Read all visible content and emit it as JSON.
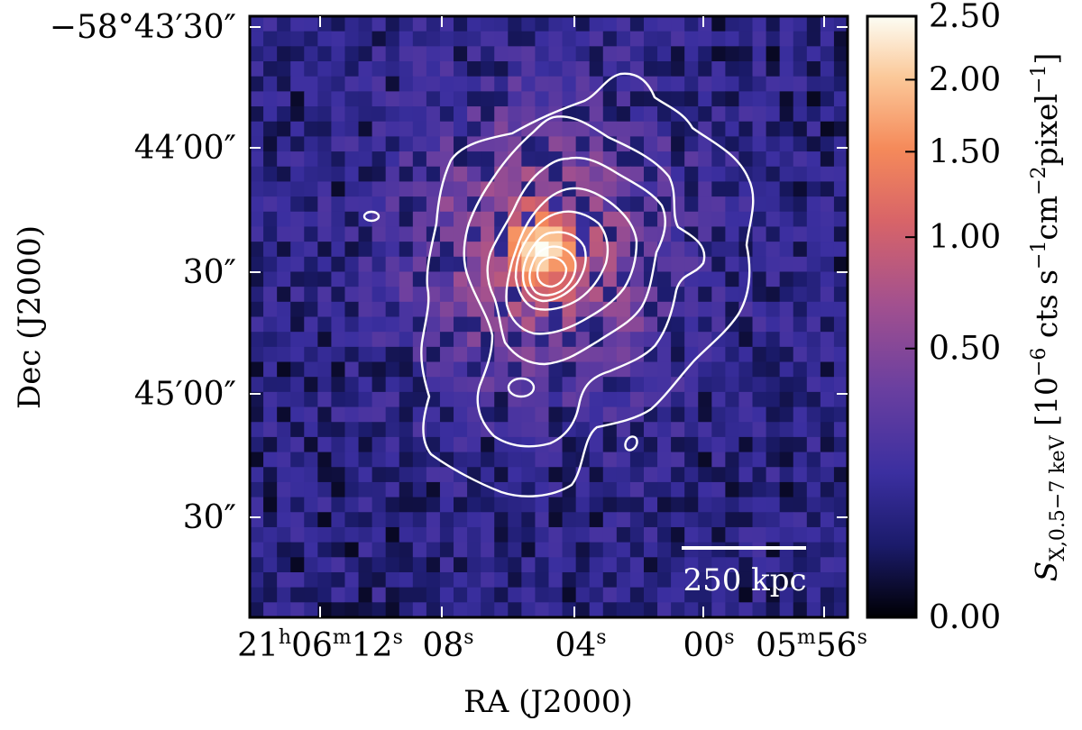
{
  "chart_data": {
    "type": "heatmap",
    "title": "",
    "xlabel": "RA (J2000)",
    "ylabel": "Dec (J2000)",
    "x_ticks": [
      {
        "label": "21h06m12s",
        "ra_seconds_offset": 12
      },
      {
        "label": "08s",
        "ra_seconds_offset": 8
      },
      {
        "label": "04s",
        "ra_seconds_offset": 4
      },
      {
        "label": "00s",
        "ra_seconds_offset": 0
      },
      {
        "label": "05m56s",
        "ra_seconds_offset": -4
      }
    ],
    "x_tick_parts": {
      "first": {
        "h": "21",
        "h_unit": "h",
        "m": "06",
        "m_unit": "m",
        "s": "12",
        "s_unit": "s"
      },
      "second": {
        "s": "08",
        "s_unit": "s"
      },
      "third": {
        "s": "04",
        "s_unit": "s"
      },
      "fourth": {
        "s": "00",
        "s_unit": "s"
      },
      "fifth": {
        "m": "05",
        "m_unit": "m",
        "s": "56",
        "s_unit": "s"
      }
    },
    "y_ticks": [
      {
        "label": "−58°43′30″",
        "dec_arcsec_offset": 0
      },
      {
        "label": "44′00″",
        "dec_arcsec_offset": -30
      },
      {
        "label": "30″",
        "dec_arcsec_offset": -60
      },
      {
        "label": "45′00″",
        "dec_arcsec_offset": -90
      },
      {
        "label": "30″",
        "dec_arcsec_offset": -120
      }
    ],
    "colorbar": {
      "label": "S_X,0.5–7 keV [10^−6 cts s^−1 cm^−2 pixel^−1]",
      "label_parts": {
        "symbol": "S",
        "subscript": "X,0.5−7 keV",
        "open": " [10",
        "exp1": "−6",
        "mid1": " cts s",
        "exp2": "−1",
        "mid2": "cm",
        "exp3": "−2",
        "mid3": "pixel",
        "exp4": "−1",
        "close": "]"
      },
      "range": [
        0.0,
        2.5
      ],
      "scale": "sqrt",
      "ticks": [
        {
          "value": 0.0,
          "label": "0.00"
        },
        {
          "value": 0.5,
          "label": "0.50"
        },
        {
          "value": 1.0,
          "label": "1.00"
        },
        {
          "value": 1.5,
          "label": "1.50"
        },
        {
          "value": 2.0,
          "label": "2.00"
        },
        {
          "value": 2.5,
          "label": "2.50"
        }
      ],
      "colormap": [
        "#000004",
        "#1b1b6b",
        "#3b2fa0",
        "#6a3fa0",
        "#a2508f",
        "#d86468",
        "#f58a5a",
        "#fbc99a",
        "#fcfdf4"
      ]
    },
    "image": {
      "grid_cols": 44,
      "grid_rows": 40,
      "peak_value": 2.5,
      "peak_col": 21,
      "peak_row": 15,
      "background_level": 0.1
    },
    "contours": {
      "count": 8,
      "color": "#ffffff"
    },
    "scale_bar": {
      "label": "250 kpc",
      "color": "#ffffff"
    }
  }
}
